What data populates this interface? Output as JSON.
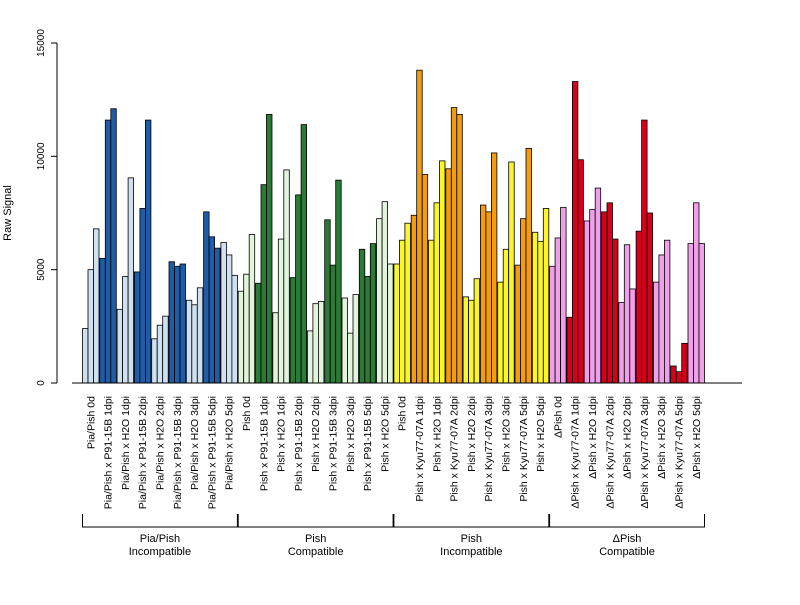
{
  "chart_data": {
    "type": "bar",
    "ylabel": "Raw Signal",
    "xlabel": "",
    "title": "",
    "ylim": [
      0,
      15000
    ],
    "yticks": [
      0,
      5000,
      10000,
      15000
    ],
    "grid": false,
    "colors": {
      "pia_light": "#cfe0f0",
      "pia_dark": "#1f5ca8",
      "comp_light": "#e2f4dc",
      "comp_dark": "#2b7a36",
      "inc_light": "#fbf62a",
      "inc_dark": "#f39c12",
      "delta_light": "#f0a0e8",
      "delta_dark": "#d4001c"
    },
    "categories": [
      {
        "label": "Pia/Pish 0d",
        "shade": "pia_light",
        "values": [
          2400,
          5000,
          6800
        ]
      },
      {
        "label": "Pia/Pish x P91-15B 1dpi",
        "shade": "pia_dark",
        "values": [
          5500,
          11600,
          12100
        ]
      },
      {
        "label": "Pia/Pish x H2O 1dpi",
        "shade": "pia_light",
        "values": [
          3250,
          4700,
          9050
        ]
      },
      {
        "label": "Pia/Pish x P91-15B 2dpi",
        "shade": "pia_dark",
        "values": [
          4900,
          7700,
          11600
        ]
      },
      {
        "label": "Pia/Pish x H2O 2dpi",
        "shade": "pia_light",
        "values": [
          1950,
          2550,
          2950
        ]
      },
      {
        "label": "Pia/Pish x P91-15B 3dpi",
        "shade": "pia_dark",
        "values": [
          5350,
          5150,
          5250
        ]
      },
      {
        "label": "Pia/Pish x H2O 3dpi",
        "shade": "pia_light",
        "values": [
          3650,
          3450,
          4200
        ]
      },
      {
        "label": "Pia/Pish x P91-15B 5dpi",
        "shade": "pia_dark",
        "values": [
          7550,
          6450,
          5950
        ]
      },
      {
        "label": "Pia/Pish x H2O 5dpi",
        "shade": "pia_light",
        "values": [
          6200,
          5650,
          4750
        ]
      },
      {
        "label": "Pish 0d",
        "shade": "comp_light",
        "values": [
          4050,
          4800,
          6550
        ]
      },
      {
        "label": "Pish x P91-15B 1dpi",
        "shade": "comp_dark",
        "values": [
          4400,
          8750,
          11850
        ]
      },
      {
        "label": "Pish x H2O 1dpi",
        "shade": "comp_light",
        "values": [
          3100,
          6350,
          9400
        ]
      },
      {
        "label": "Pish x P91-15B 2dpi",
        "shade": "comp_dark",
        "values": [
          4650,
          8300,
          11400
        ]
      },
      {
        "label": "Pish x H2O 2dpi",
        "shade": "comp_light",
        "values": [
          2300,
          3500,
          3600
        ]
      },
      {
        "label": "Pish x P91-15B 3dpi",
        "shade": "comp_dark",
        "values": [
          7200,
          5200,
          8950
        ]
      },
      {
        "label": "Pish x H2O 3dpi",
        "shade": "comp_light",
        "values": [
          3750,
          2200,
          3900
        ]
      },
      {
        "label": "Pish x P91-15B 5dpi",
        "shade": "comp_dark",
        "values": [
          5900,
          4700,
          6150
        ]
      },
      {
        "label": "Pish x H2O 5dpi",
        "shade": "comp_light",
        "values": [
          7250,
          8000,
          5250
        ]
      },
      {
        "label": "Pish 0d",
        "shade": "inc_light",
        "values": [
          5250,
          6300,
          7050
        ]
      },
      {
        "label": "Pish x Kyu77-07A 1dpi",
        "shade": "inc_dark",
        "values": [
          7400,
          13800,
          9200
        ]
      },
      {
        "label": "Pish x H2O 1dpi",
        "shade": "inc_light",
        "values": [
          6300,
          7950,
          9800
        ]
      },
      {
        "label": "Pish x Kyu77-07A 2dpi",
        "shade": "inc_dark",
        "values": [
          9450,
          12150,
          11850
        ]
      },
      {
        "label": "Pish x H2O 2dpi",
        "shade": "inc_light",
        "values": [
          3800,
          3650,
          4600
        ]
      },
      {
        "label": "Pish x Kyu77-07A 3dpi",
        "shade": "inc_dark",
        "values": [
          7850,
          7550,
          10150
        ]
      },
      {
        "label": "Pish x H2O 3dpi",
        "shade": "inc_light",
        "values": [
          4450,
          5900,
          9750
        ]
      },
      {
        "label": "Pish x Kyu77-07A 5dpi",
        "shade": "inc_dark",
        "values": [
          5200,
          7250,
          10350
        ]
      },
      {
        "label": "Pish x H2O 5dpi",
        "shade": "inc_light",
        "values": [
          6650,
          6250,
          7700
        ]
      },
      {
        "label": "ΔPish 0d",
        "shade": "delta_light",
        "values": [
          5150,
          6400,
          7750
        ]
      },
      {
        "label": "ΔPish x Kyu77-07A 1dpi",
        "shade": "delta_dark",
        "values": [
          2900,
          13300,
          9850
        ]
      },
      {
        "label": "ΔPish x H2O 1dpi",
        "shade": "delta_light",
        "values": [
          7150,
          7650,
          8600
        ]
      },
      {
        "label": "ΔPish x Kyu77-07A 2dpi",
        "shade": "delta_dark",
        "values": [
          7550,
          7950,
          6350
        ]
      },
      {
        "label": "ΔPish x H2O 2dpi",
        "shade": "delta_light",
        "values": [
          3550,
          6100,
          4150
        ]
      },
      {
        "label": "ΔPish x Kyu77-07A 3dpi",
        "shade": "delta_dark",
        "values": [
          6700,
          11600,
          7500
        ]
      },
      {
        "label": "ΔPish x H2O 3dpi",
        "shade": "delta_light",
        "values": [
          4450,
          5650,
          6300
        ]
      },
      {
        "label": "ΔPish x Kyu77-07A 5dpi",
        "shade": "delta_dark",
        "values": [
          750,
          500,
          1750
        ]
      },
      {
        "label": "ΔPish x H2O 5dpi",
        "shade": "delta_light",
        "values": [
          6150,
          7950,
          6150
        ]
      }
    ],
    "groups": [
      {
        "line1": "Pia/Pish",
        "line2": "Incompatible",
        "first": 0,
        "last": 8
      },
      {
        "line1": "Pish",
        "line2": "Compatible",
        "first": 9,
        "last": 17
      },
      {
        "line1": "Pish",
        "line2": "Incompatible",
        "first": 18,
        "last": 26
      },
      {
        "line1": "ΔPish",
        "line2": "Compatible",
        "first": 27,
        "last": 35
      }
    ]
  }
}
